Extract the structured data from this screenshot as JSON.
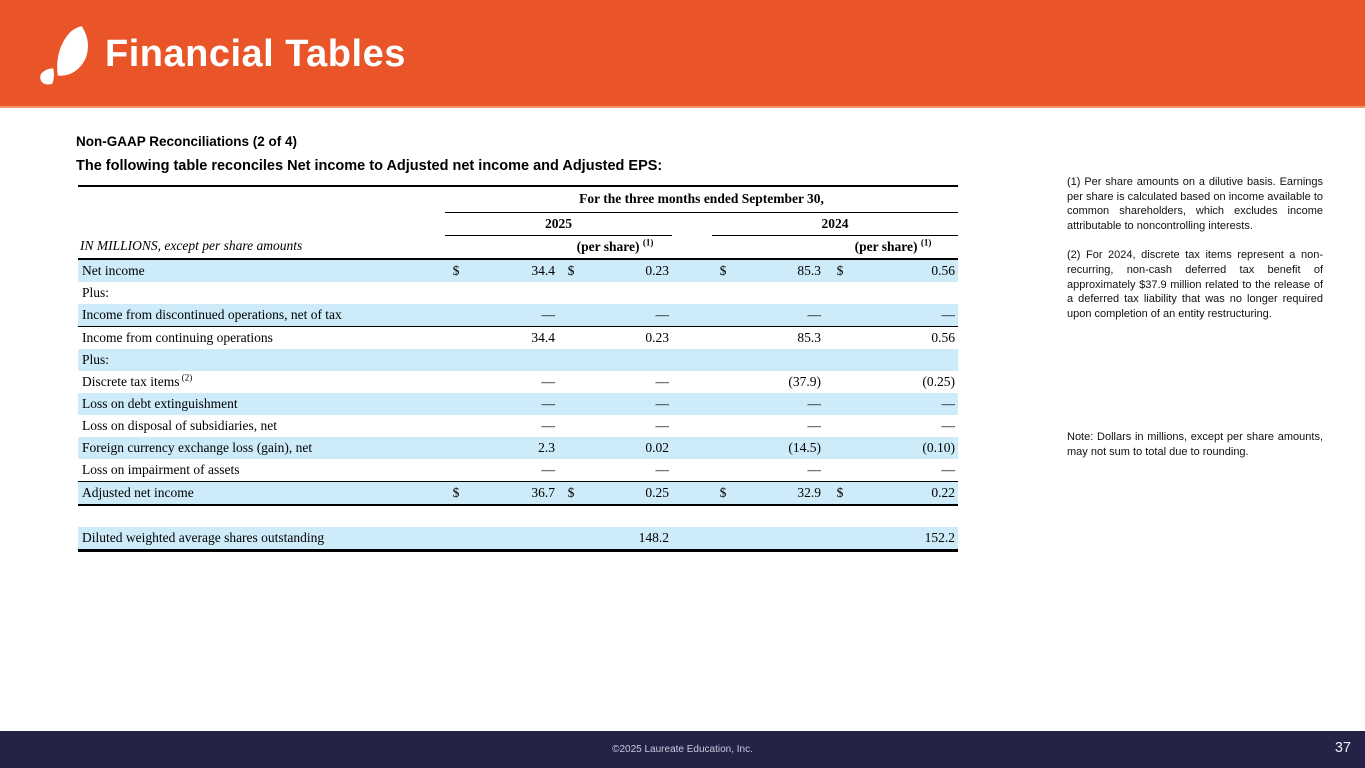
{
  "banner": {
    "title": "Financial Tables",
    "bg_color": "#E95428",
    "logo_icon": "laureate-leaf-icon"
  },
  "content": {
    "section_title": "Non-GAAP Reconciliations (2 of 4)",
    "table_intro": "The following table reconciles Net income to Adjusted net income and Adjusted EPS:"
  },
  "table": {
    "period_header": "For the three months ended September 30,",
    "year_2025": "2025",
    "year_2024": "2024",
    "row_header_label": "IN MILLIONS, except per share amounts",
    "per_share_label": "(per share)",
    "per_share_footnote_ref": "(1)",
    "shade_color": "#CDEBF8",
    "rows": [
      {
        "label": "Net income",
        "cells": [
          "$",
          "34.4",
          "$",
          "0.23",
          "$",
          "85.3",
          "$",
          "0.56"
        ],
        "type": "data"
      },
      {
        "label": "Plus:",
        "cells": [
          "",
          "",
          "",
          "",
          "",
          "",
          "",
          ""
        ],
        "type": "data"
      },
      {
        "label": "Income from discontinued operations, net of tax",
        "cells": [
          "",
          "—",
          "",
          "—",
          "",
          "—",
          "",
          "—"
        ],
        "type": "rule-below"
      },
      {
        "label": "Income from continuing operations",
        "cells": [
          "",
          "34.4",
          "",
          "0.23",
          "",
          "85.3",
          "",
          "0.56"
        ],
        "type": "data"
      },
      {
        "label": "Plus:",
        "cells": [
          "",
          "",
          "",
          "",
          "",
          "",
          "",
          ""
        ],
        "type": "data"
      },
      {
        "label": "Discrete tax items",
        "label_sup": "(2)",
        "cells": [
          "",
          "—",
          "",
          "—",
          "",
          "(37.9)",
          "",
          "(0.25)"
        ],
        "type": "data"
      },
      {
        "label": "Loss on debt extinguishment",
        "cells": [
          "",
          "—",
          "",
          "—",
          "",
          "—",
          "",
          "—"
        ],
        "type": "data"
      },
      {
        "label": "Loss on disposal of subsidiaries, net",
        "cells": [
          "",
          "—",
          "",
          "—",
          "",
          "—",
          "",
          "—"
        ],
        "type": "data"
      },
      {
        "label": "Foreign currency exchange loss (gain), net",
        "cells": [
          "",
          "2.3",
          "",
          "0.02",
          "",
          "(14.5)",
          "",
          "(0.10)"
        ],
        "type": "data"
      },
      {
        "label": "Loss on impairment of assets",
        "cells": [
          "",
          "—",
          "",
          "—",
          "",
          "—",
          "",
          "—"
        ],
        "type": "data"
      },
      {
        "label": "Adjusted net income",
        "cells": [
          "$",
          "36.7",
          "$",
          "0.25",
          "$",
          "32.9",
          "$",
          "0.22"
        ],
        "type": "total"
      },
      {
        "label": "",
        "cells": [
          "",
          "",
          "",
          "",
          "",
          "",
          "",
          ""
        ],
        "type": "spacer"
      },
      {
        "label": "Diluted weighted average shares outstanding",
        "cells": [
          "",
          "",
          "",
          "148.2",
          "",
          "",
          "",
          "152.2"
        ],
        "type": "final"
      }
    ]
  },
  "footnotes": {
    "fn1": "(1) Per share amounts on a dilutive basis. Earnings per share is calculated based on income available to common shareholders, which excludes income attributable to noncontrolling interests.",
    "fn2": "(2) For 2024, discrete tax items represent a non-recurring, non-cash deferred tax benefit of approximately $37.9 million related to the release of a deferred tax liability that was no longer required upon completion of an entity restructuring.",
    "note": "Note:  Dollars in millions, except per share amounts, may not sum to total due to rounding."
  },
  "footer": {
    "copyright": "©2025 Laureate Education, Inc.",
    "page_number": "37",
    "bg_color": "#252248"
  }
}
